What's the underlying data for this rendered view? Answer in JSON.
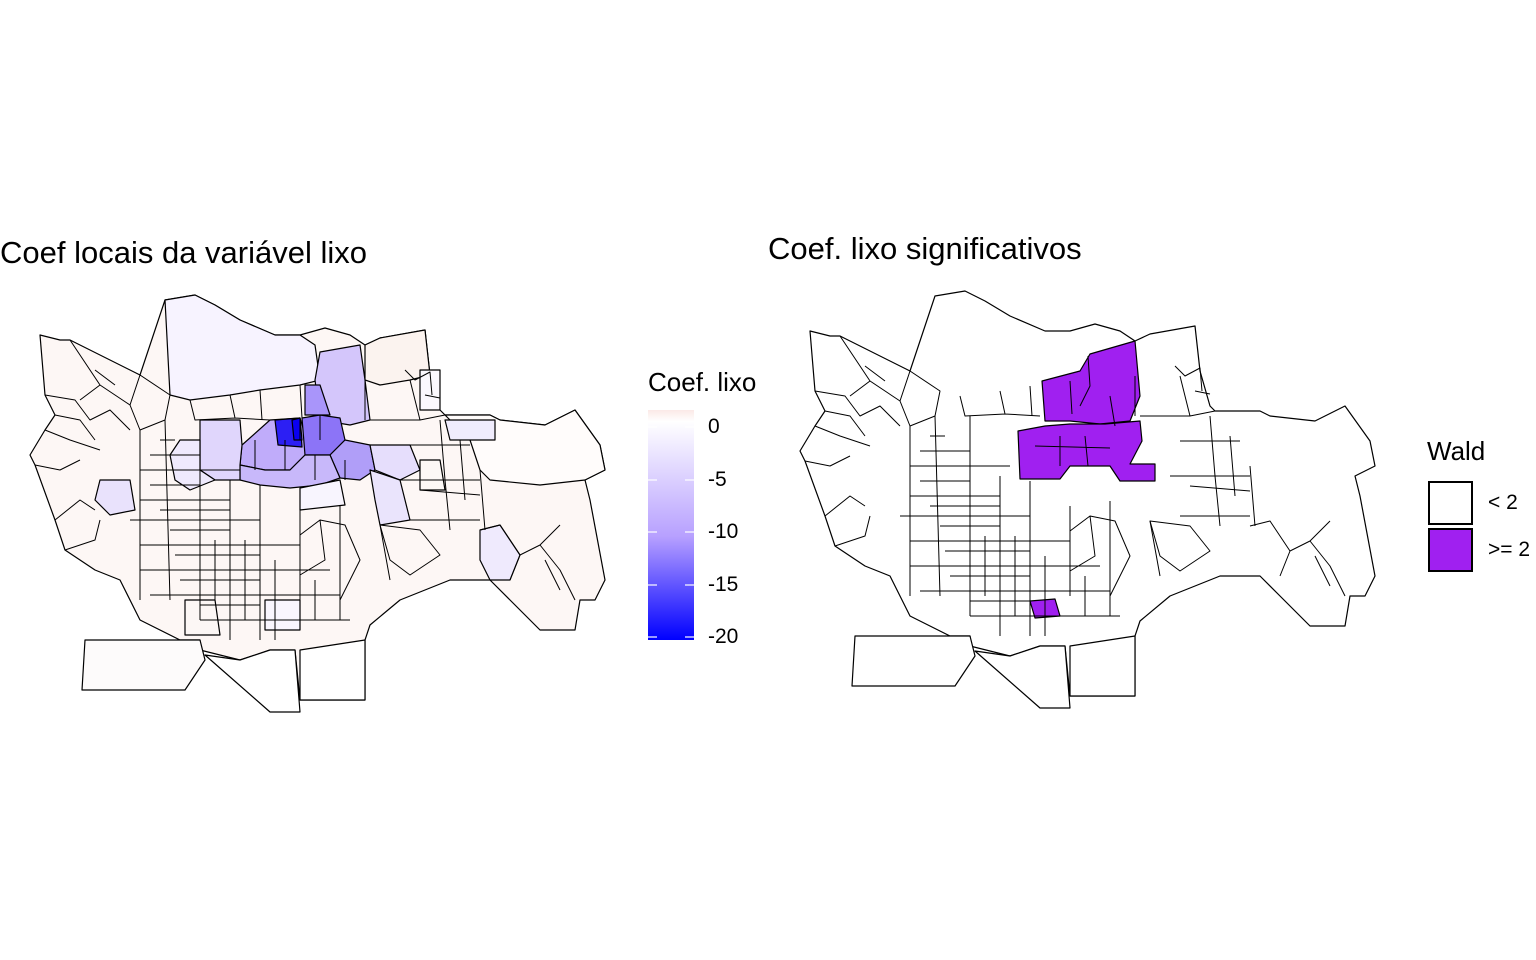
{
  "left_panel": {
    "title": "Coef locais da variável lixo",
    "legend": {
      "title": "Coef. lixo",
      "ticks": [
        {
          "value": 0,
          "label": "0"
        },
        {
          "value": -5,
          "label": "-5"
        },
        {
          "value": -10,
          "label": "-10"
        },
        {
          "value": -15,
          "label": "-15"
        },
        {
          "value": -20,
          "label": "-20"
        }
      ],
      "range": [
        -20.5,
        1
      ],
      "colors": {
        "low": "#0000ff",
        "mid": "#ffffff",
        "high": "#fbe9e7"
      }
    }
  },
  "right_panel": {
    "title": "Coef. lixo significativos",
    "legend": {
      "title": "Wald",
      "keys": [
        {
          "label": "< 2",
          "color": "#ffffff"
        },
        {
          "label": ">= 2",
          "color": "#a020f0"
        }
      ]
    }
  }
}
